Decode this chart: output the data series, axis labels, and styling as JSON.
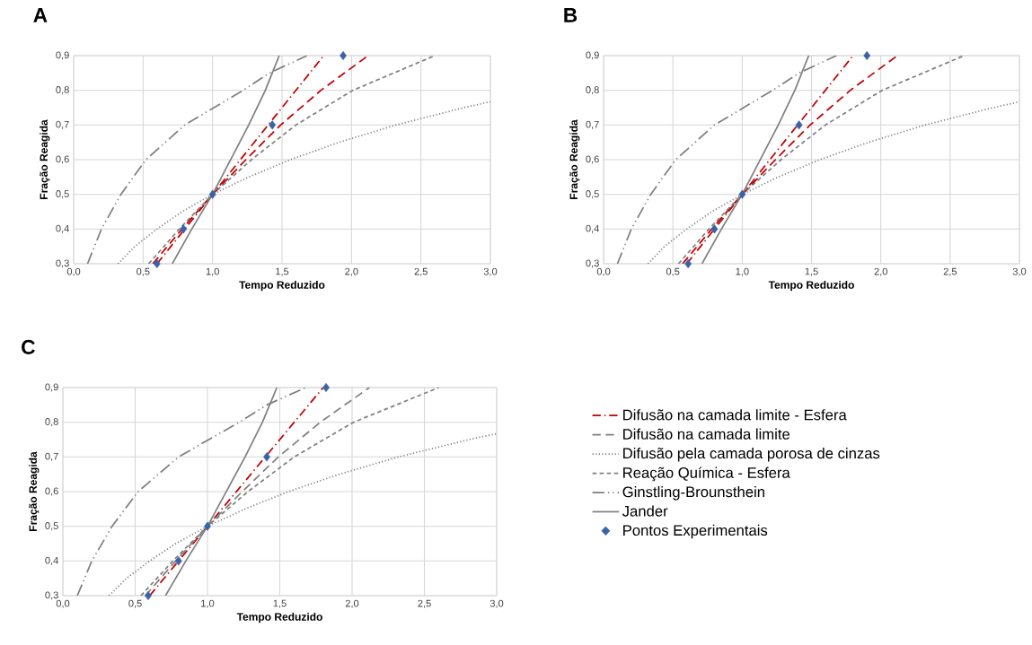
{
  "chart_data": [
    {
      "type": "line",
      "title": "A",
      "xlabel": "Tempo Reduzido",
      "ylabel": "Fração Reagida",
      "xlim": [
        0,
        3
      ],
      "ylim": [
        0.3,
        0.9
      ],
      "grid": true,
      "xticks": [
        {
          "value": 0,
          "label": "0,0"
        },
        {
          "value": 0.5,
          "label": "0,5"
        },
        {
          "value": 1,
          "label": "1,0"
        },
        {
          "value": 1.5,
          "label": "1,5"
        },
        {
          "value": 2,
          "label": "2,0"
        },
        {
          "value": 2.5,
          "label": "2,5"
        },
        {
          "value": 3,
          "label": "3,0"
        }
      ],
      "yticks": [
        {
          "value": 0.3,
          "label": "0,3"
        },
        {
          "value": 0.4,
          "label": "0,4"
        },
        {
          "value": 0.5,
          "label": "0,5"
        },
        {
          "value": 0.6,
          "label": "0,6"
        },
        {
          "value": 0.7,
          "label": "0,7"
        },
        {
          "value": 0.8,
          "label": "0,8"
        },
        {
          "value": 0.9,
          "label": "0,9"
        }
      ],
      "series": [
        {
          "color": "#c00000",
          "line_style": "dashdot",
          "x": [
            0.6,
            1.0,
            1.8
          ],
          "values": [
            0.3,
            0.5,
            0.9
          ]
        },
        {
          "color": "#c00000",
          "line_style": "longdash",
          "x": [
            0.57,
            0.78,
            1.0,
            1.24,
            1.49,
            1.78,
            2.12
          ],
          "values": [
            0.3,
            0.4,
            0.5,
            0.6,
            0.7,
            0.8,
            0.9
          ]
        },
        {
          "color": "#808080",
          "line_style": "dotted",
          "x": [
            0.32,
            0.44,
            0.6,
            0.78,
            1.0,
            1.26,
            1.56,
            1.91,
            2.32,
            2.81,
            3.0
          ],
          "values": [
            0.3,
            0.35,
            0.4,
            0.45,
            0.5,
            0.55,
            0.6,
            0.65,
            0.7,
            0.75,
            0.767
          ]
        },
        {
          "color": "#808080",
          "line_style": "dashed",
          "x": [
            0.54,
            0.76,
            1.0,
            1.28,
            1.6,
            2.01,
            2.6
          ],
          "values": [
            0.3,
            0.4,
            0.5,
            0.6,
            0.7,
            0.8,
            0.9
          ]
        },
        {
          "color": "#808080",
          "line_style": "dashdotdot",
          "x": [
            0.1,
            0.2,
            0.34,
            0.52,
            0.8,
            1.22,
            1.41,
            1.68
          ],
          "values": [
            0.3,
            0.4,
            0.5,
            0.6,
            0.7,
            0.8,
            0.85,
            0.9
          ]
        },
        {
          "color": "#808080",
          "line_style": "solid",
          "x": [
            0.71,
            0.85,
            1.0,
            1.13,
            1.26,
            1.38,
            1.48
          ],
          "values": [
            0.3,
            0.4,
            0.5,
            0.6,
            0.7,
            0.8,
            0.9
          ]
        },
        {
          "type": "scatter",
          "marker": "diamond",
          "color": "#3a62a8",
          "x": [
            0.6,
            0.79,
            1.0,
            1.43,
            1.94
          ],
          "values": [
            0.3,
            0.4,
            0.5,
            0.7,
            0.9
          ]
        }
      ]
    },
    {
      "type": "line",
      "title": "B",
      "xlabel": "Tempo Reduzido",
      "ylabel": "Fração Reagida",
      "xlim": [
        0,
        3
      ],
      "ylim": [
        0.3,
        0.9
      ],
      "grid": true,
      "xticks": [
        {
          "value": 0,
          "label": "0,0"
        },
        {
          "value": 0.5,
          "label": "0,5"
        },
        {
          "value": 1,
          "label": "1,0"
        },
        {
          "value": 1.5,
          "label": "1,5"
        },
        {
          "value": 2,
          "label": "2,0"
        },
        {
          "value": 2.5,
          "label": "2,5"
        },
        {
          "value": 3,
          "label": "3,0"
        }
      ],
      "yticks": [
        {
          "value": 0.3,
          "label": "0,3"
        },
        {
          "value": 0.4,
          "label": "0,4"
        },
        {
          "value": 0.5,
          "label": "0,5"
        },
        {
          "value": 0.6,
          "label": "0,6"
        },
        {
          "value": 0.7,
          "label": "0,7"
        },
        {
          "value": 0.8,
          "label": "0,8"
        },
        {
          "value": 0.9,
          "label": "0,9"
        }
      ],
      "series": [
        {
          "color": "#c00000",
          "line_style": "dashdot",
          "x": [
            0.6,
            1.0,
            1.8
          ],
          "values": [
            0.3,
            0.5,
            0.9
          ]
        },
        {
          "color": "#c00000",
          "line_style": "longdash",
          "x": [
            0.57,
            0.78,
            1.0,
            1.24,
            1.49,
            1.78,
            2.12
          ],
          "values": [
            0.3,
            0.4,
            0.5,
            0.6,
            0.7,
            0.8,
            0.9
          ]
        },
        {
          "color": "#808080",
          "line_style": "dotted",
          "x": [
            0.32,
            0.44,
            0.6,
            0.78,
            1.0,
            1.26,
            1.56,
            1.91,
            2.32,
            2.81,
            3.0
          ],
          "values": [
            0.3,
            0.35,
            0.4,
            0.45,
            0.5,
            0.55,
            0.6,
            0.65,
            0.7,
            0.75,
            0.767
          ]
        },
        {
          "color": "#808080",
          "line_style": "dashed",
          "x": [
            0.54,
            0.76,
            1.0,
            1.28,
            1.6,
            2.01,
            2.6
          ],
          "values": [
            0.3,
            0.4,
            0.5,
            0.6,
            0.7,
            0.8,
            0.9
          ]
        },
        {
          "color": "#808080",
          "line_style": "dashdotdot",
          "x": [
            0.1,
            0.2,
            0.34,
            0.52,
            0.8,
            1.22,
            1.41,
            1.68
          ],
          "values": [
            0.3,
            0.4,
            0.5,
            0.6,
            0.7,
            0.8,
            0.85,
            0.9
          ]
        },
        {
          "color": "#808080",
          "line_style": "solid",
          "x": [
            0.71,
            0.85,
            1.0,
            1.13,
            1.26,
            1.38,
            1.48
          ],
          "values": [
            0.3,
            0.4,
            0.5,
            0.6,
            0.7,
            0.8,
            0.9
          ]
        },
        {
          "type": "scatter",
          "marker": "diamond",
          "color": "#3a62a8",
          "x": [
            0.61,
            0.8,
            1.0,
            1.41,
            1.9
          ],
          "values": [
            0.3,
            0.4,
            0.5,
            0.7,
            0.9
          ]
        }
      ]
    },
    {
      "type": "line",
      "title": "C",
      "xlabel": "Tempo Reduzido",
      "ylabel": "Fração Reagida",
      "xlim": [
        0,
        3
      ],
      "ylim": [
        0.3,
        0.9
      ],
      "grid": true,
      "legend": "right",
      "xticks": [
        {
          "value": 0,
          "label": "0,0"
        },
        {
          "value": 0.5,
          "label": "0,5"
        },
        {
          "value": 1,
          "label": "1,0"
        },
        {
          "value": 1.5,
          "label": "1,5"
        },
        {
          "value": 2,
          "label": "2,0"
        },
        {
          "value": 2.5,
          "label": "2,5"
        },
        {
          "value": 3,
          "label": "3,0"
        }
      ],
      "yticks": [
        {
          "value": 0.3,
          "label": "0,3"
        },
        {
          "value": 0.4,
          "label": "0,4"
        },
        {
          "value": 0.5,
          "label": "0,5"
        },
        {
          "value": 0.6,
          "label": "0,6"
        },
        {
          "value": 0.7,
          "label": "0,7"
        },
        {
          "value": 0.8,
          "label": "0,8"
        },
        {
          "value": 0.9,
          "label": "0,9"
        }
      ],
      "series": [
        {
          "name": "Difusão na camada limite - Esfera",
          "color": "#c00000",
          "line_style": "dashdot",
          "x": [
            0.6,
            1.0,
            1.8
          ],
          "values": [
            0.3,
            0.5,
            0.9
          ]
        },
        {
          "name": "Difusão na camada limite",
          "color": "#808080",
          "line_style": "longdash",
          "x": [
            0.57,
            0.78,
            1.0,
            1.24,
            1.49,
            1.78,
            2.12
          ],
          "values": [
            0.3,
            0.4,
            0.5,
            0.6,
            0.7,
            0.8,
            0.9
          ]
        },
        {
          "name": "Difusão pela camada porosa de cinzas",
          "color": "#808080",
          "line_style": "dotted",
          "x": [
            0.32,
            0.44,
            0.6,
            0.78,
            1.0,
            1.26,
            1.56,
            1.91,
            2.32,
            2.81,
            3.0
          ],
          "values": [
            0.3,
            0.35,
            0.4,
            0.45,
            0.5,
            0.55,
            0.6,
            0.65,
            0.7,
            0.75,
            0.767
          ]
        },
        {
          "name": "Reação Química - Esfera",
          "color": "#808080",
          "line_style": "dashed",
          "x": [
            0.54,
            0.76,
            1.0,
            1.28,
            1.6,
            2.01,
            2.6
          ],
          "values": [
            0.3,
            0.4,
            0.5,
            0.6,
            0.7,
            0.8,
            0.9
          ]
        },
        {
          "name": "Ginstling-Brounsthein",
          "color": "#808080",
          "line_style": "dashdotdot",
          "x": [
            0.1,
            0.2,
            0.34,
            0.52,
            0.8,
            1.22,
            1.41,
            1.68
          ],
          "values": [
            0.3,
            0.4,
            0.5,
            0.6,
            0.7,
            0.8,
            0.85,
            0.9
          ]
        },
        {
          "name": "Jander",
          "color": "#808080",
          "line_style": "solid",
          "x": [
            0.71,
            0.85,
            1.0,
            1.13,
            1.26,
            1.38,
            1.48
          ],
          "values": [
            0.3,
            0.4,
            0.5,
            0.6,
            0.7,
            0.8,
            0.9
          ]
        },
        {
          "name": "Pontos Experimentais",
          "type": "scatter",
          "marker": "diamond",
          "color": "#3a62a8",
          "x": [
            0.59,
            0.8,
            1.0,
            1.41,
            1.82
          ],
          "values": [
            0.3,
            0.4,
            0.5,
            0.7,
            0.9
          ]
        }
      ]
    }
  ]
}
